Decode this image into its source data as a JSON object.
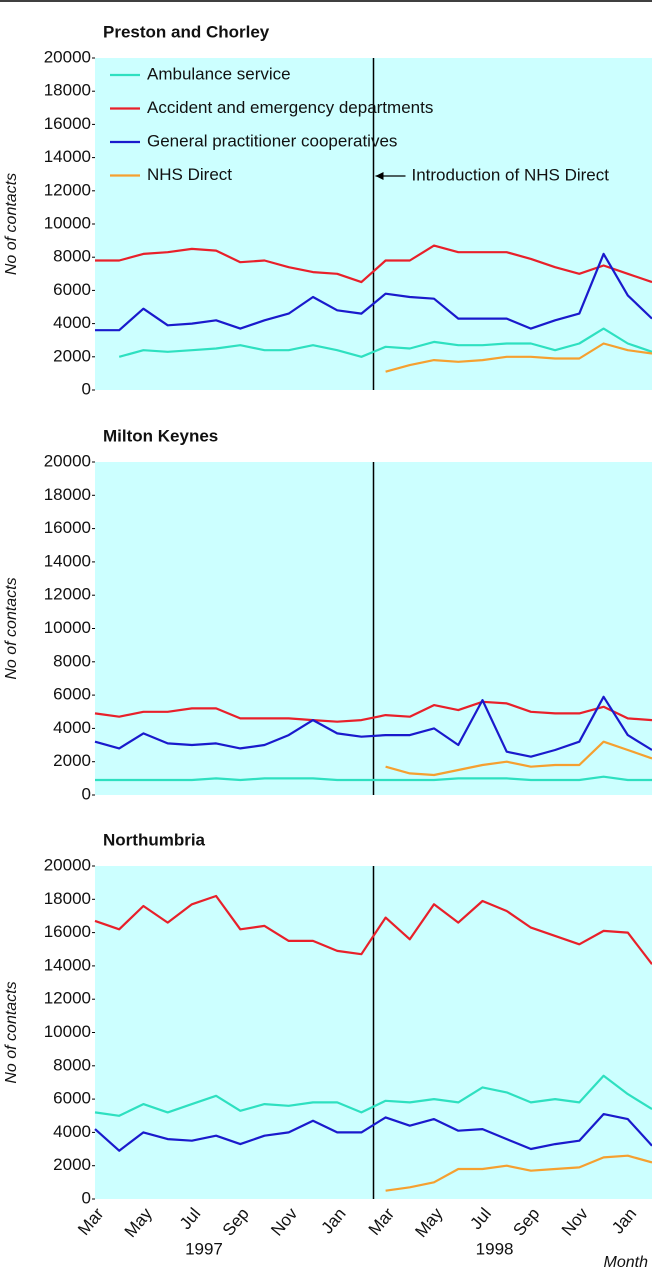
{
  "chart_data": [
    {
      "type": "line",
      "title": "Preston and Chorley",
      "y_label": "No of contacts",
      "annotation": "Introduction of NHS Direct",
      "ylim": [
        0,
        20000
      ],
      "yticks": [
        0,
        2000,
        4000,
        6000,
        8000,
        10000,
        12000,
        14000,
        16000,
        18000,
        20000
      ],
      "series": [
        {
          "name": "Ambulance service",
          "color": "#2ee0c0",
          "values": [
            null,
            2000,
            2400,
            2300,
            2400,
            2500,
            2700,
            2400,
            2400,
            2700,
            2400,
            2000,
            2600,
            2500,
            2900,
            2700,
            2700,
            2800,
            2800,
            2400,
            2800,
            3700,
            2800,
            2300
          ]
        },
        {
          "name": "Accident and emergency departments",
          "color": "#e8202a",
          "values": [
            7800,
            7800,
            8200,
            8300,
            8500,
            8400,
            7700,
            7800,
            7400,
            7100,
            7000,
            6500,
            7800,
            7800,
            8700,
            8300,
            8300,
            8300,
            7900,
            7400,
            7000,
            7500,
            7000,
            6500
          ]
        },
        {
          "name": "General practitioner cooperatives",
          "color": "#1a1acc",
          "values": [
            3600,
            3600,
            4900,
            3900,
            4000,
            4200,
            3700,
            4200,
            4600,
            5600,
            4800,
            4600,
            5800,
            5600,
            5500,
            4300,
            4300,
            4300,
            3700,
            4200,
            4600,
            8200,
            5700,
            4300
          ]
        },
        {
          "name": "NHS Direct",
          "color": "#f5a030",
          "values": [
            null,
            null,
            null,
            null,
            null,
            null,
            null,
            null,
            null,
            null,
            null,
            null,
            1100,
            1500,
            1800,
            1700,
            1800,
            2000,
            2000,
            1900,
            1900,
            2800,
            2400,
            2200
          ]
        }
      ]
    },
    {
      "type": "line",
      "title": "Milton Keynes",
      "y_label": "No of contacts",
      "ylim": [
        0,
        20000
      ],
      "yticks": [
        0,
        2000,
        4000,
        6000,
        8000,
        10000,
        12000,
        14000,
        16000,
        18000,
        20000
      ],
      "series": [
        {
          "color": "#2ee0c0",
          "values": [
            900,
            900,
            900,
            900,
            900,
            1000,
            900,
            1000,
            1000,
            1000,
            900,
            900,
            900,
            900,
            900,
            1000,
            1000,
            1000,
            900,
            900,
            900,
            1100,
            900,
            900
          ]
        },
        {
          "color": "#e8202a",
          "values": [
            4900,
            4700,
            5000,
            5000,
            5200,
            5200,
            4600,
            4600,
            4600,
            4500,
            4400,
            4500,
            4800,
            4700,
            5400,
            5100,
            5600,
            5500,
            5000,
            4900,
            4900,
            5300,
            4600,
            4500
          ]
        },
        {
          "color": "#1a1acc",
          "values": [
            3200,
            2800,
            3700,
            3100,
            3000,
            3100,
            2800,
            3000,
            3600,
            4500,
            3700,
            3500,
            3600,
            3600,
            4000,
            3000,
            5700,
            2600,
            2300,
            2700,
            3200,
            5900,
            3600,
            2700
          ]
        },
        {
          "color": "#f5a030",
          "values": [
            null,
            null,
            null,
            null,
            null,
            null,
            null,
            null,
            null,
            null,
            null,
            null,
            1700,
            1300,
            1200,
            1500,
            1800,
            2000,
            1700,
            1800,
            1800,
            3200,
            2700,
            2200
          ]
        }
      ]
    },
    {
      "type": "line",
      "title": "Northumbria",
      "y_label": "No of contacts",
      "x_label": "Month",
      "categories": [
        "Mar",
        null,
        "May",
        null,
        "Jul",
        null,
        "Sep",
        null,
        "Nov",
        null,
        "Jan",
        null,
        "Mar",
        null,
        "May",
        null,
        "Jul",
        null,
        "Sep",
        null,
        "Nov",
        null,
        "Jan",
        null
      ],
      "year_labels": [
        "1997",
        "1998"
      ],
      "ylim": [
        0,
        20000
      ],
      "yticks": [
        0,
        2000,
        4000,
        6000,
        8000,
        10000,
        12000,
        14000,
        16000,
        18000,
        20000
      ],
      "series": [
        {
          "color": "#2ee0c0",
          "values": [
            5200,
            5000,
            5700,
            5200,
            5700,
            6200,
            5300,
            5700,
            5600,
            5800,
            5800,
            5200,
            5900,
            5800,
            6000,
            5800,
            6700,
            6400,
            5800,
            6000,
            5800,
            7400,
            6300,
            5400
          ]
        },
        {
          "color": "#e8202a",
          "values": [
            16700,
            16200,
            17600,
            16600,
            17700,
            18200,
            16200,
            16400,
            15500,
            15500,
            14900,
            14700,
            16900,
            15600,
            17700,
            16600,
            17900,
            17300,
            16300,
            15800,
            15300,
            16100,
            16000,
            14100
          ]
        },
        {
          "color": "#1a1acc",
          "values": [
            4200,
            2900,
            4000,
            3600,
            3500,
            3800,
            3300,
            3800,
            4000,
            4700,
            4000,
            4000,
            4900,
            4400,
            4800,
            4100,
            4200,
            3600,
            3000,
            3300,
            3500,
            5100,
            4800,
            3200
          ]
        },
        {
          "color": "#f5a030",
          "values": [
            null,
            null,
            null,
            null,
            null,
            null,
            null,
            null,
            null,
            null,
            null,
            null,
            500,
            700,
            1000,
            1800,
            1800,
            2000,
            1700,
            1800,
            1900,
            2500,
            2600,
            2200
          ]
        }
      ]
    }
  ]
}
